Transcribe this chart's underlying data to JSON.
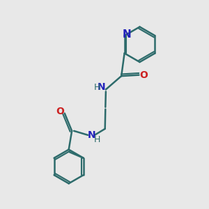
{
  "background_color": "#e8e8e8",
  "bond_color": "#2d6b6b",
  "nitrogen_color": "#2222bb",
  "oxygen_color": "#cc2222",
  "line_width": 1.8,
  "font_size": 10,
  "figsize": [
    3.0,
    3.0
  ],
  "dpi": 100,
  "xlim": [
    0,
    10
  ],
  "ylim": [
    0,
    10
  ]
}
